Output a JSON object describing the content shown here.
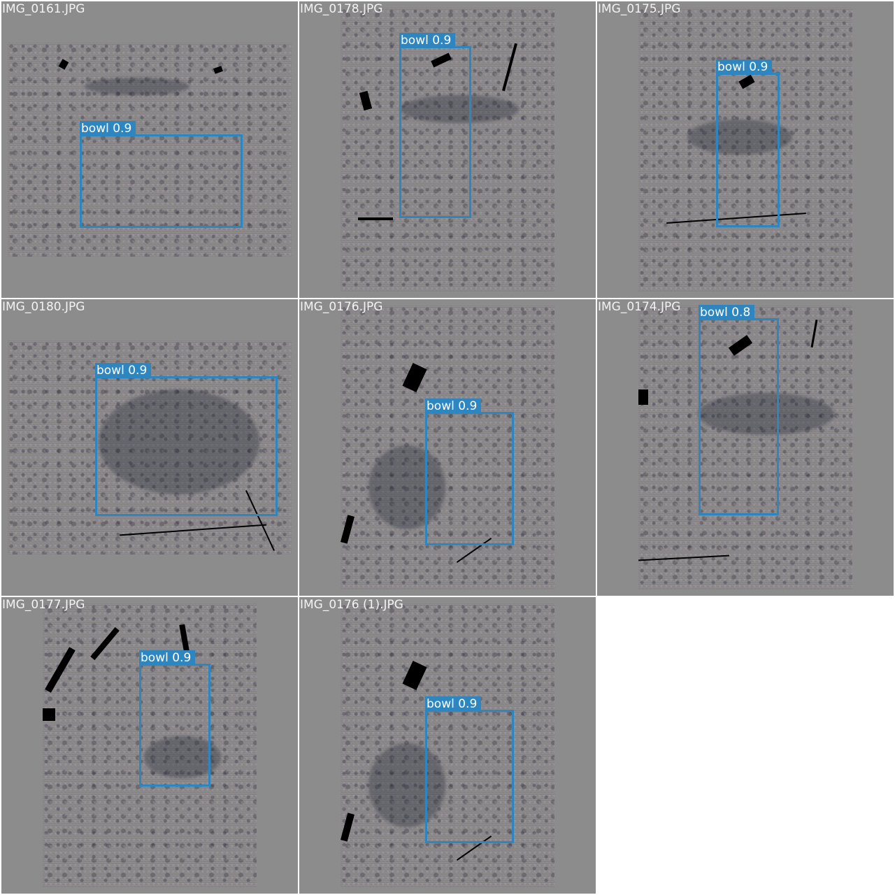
{
  "tiles": [
    {
      "filename": "IMG_0161.JPG",
      "detection": {
        "label": "bowl 0.9",
        "class": "bowl",
        "confidence": 0.9
      }
    },
    {
      "filename": "IMG_0178.JPG",
      "detection": {
        "label": "bowl 0.9",
        "class": "bowl",
        "confidence": 0.9
      }
    },
    {
      "filename": "IMG_0175.JPG",
      "detection": {
        "label": "bowl 0.9",
        "class": "bowl",
        "confidence": 0.9
      }
    },
    {
      "filename": "IMG_0180.JPG",
      "detection": {
        "label": "bowl 0.9",
        "class": "bowl",
        "confidence": 0.9
      }
    },
    {
      "filename": "IMG_0176.JPG",
      "detection": {
        "label": "bowl 0.9",
        "class": "bowl",
        "confidence": 0.9
      }
    },
    {
      "filename": "IMG_0174.JPG",
      "detection": {
        "label": "bowl 0.8",
        "class": "bowl",
        "confidence": 0.8
      }
    },
    {
      "filename": "IMG_0177.JPG",
      "detection": {
        "label": "bowl 0.9",
        "class": "bowl",
        "confidence": 0.9
      }
    },
    {
      "filename": "IMG_0176 (1).JPG",
      "detection": {
        "label": "bowl 0.9",
        "class": "bowl",
        "confidence": 0.9
      }
    }
  ],
  "colors": {
    "box": "#2e86c1",
    "tile_background": "#8c8c8c",
    "grid_background": "#ffffff"
  }
}
